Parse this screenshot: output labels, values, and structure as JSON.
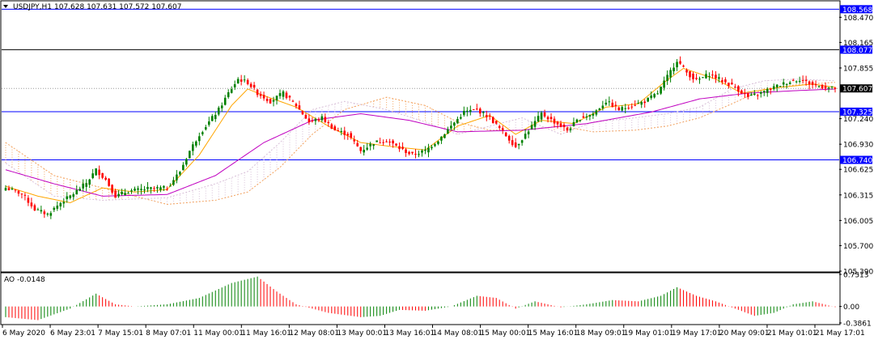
{
  "header": {
    "symbol": "USDJPY,H1",
    "ohlc": "107.628 107.631 107.572 107.607",
    "menu_icon": "triangle-down-icon"
  },
  "colors": {
    "background": "#ffffff",
    "bull_body": "#008000",
    "bear_body": "#ff0000",
    "hline": "#0000ff",
    "ma_fast": "#ffa500",
    "ma_slow": "#c000c0",
    "cloud_a": "#f4a460",
    "cloud_b": "#d8bfd8",
    "ao_up": "#008000",
    "ao_down": "#ff0000",
    "label_bg": "#0000ff",
    "price_bg": "#000000"
  },
  "chart_data": [
    {
      "type": "candlestick",
      "title": "USDJPY,H1",
      "ylim": [
        105.39,
        108.66
      ],
      "price_ticks": [
        "108.470",
        "108.165",
        "107.855",
        "107.240",
        "106.930",
        "106.625",
        "106.315",
        "106.005",
        "105.700",
        "105.390"
      ],
      "horizontal_levels": [
        "108.568",
        "108.077",
        "107.325",
        "106.740"
      ],
      "current_price": "107.607",
      "time_labels": [
        "6 May 2020",
        "6 May 23:01",
        "7 May 15:01",
        "8 May 07:01",
        "11 May 00:01",
        "11 May 16:01",
        "12 May 08:01",
        "13 May 00:01",
        "13 May 16:01",
        "14 May 08:01",
        "15 May 00:01",
        "15 May 16:01",
        "18 May 09:01",
        "19 May 01:01",
        "19 May 17:01",
        "20 May 09:01",
        "21 May 01:01",
        "21 May 17:01"
      ],
      "close_anchors": [
        [
          0,
          106.4
        ],
        [
          5,
          106.33
        ],
        [
          9,
          106.14
        ],
        [
          13,
          106.08
        ],
        [
          17,
          106.22
        ],
        [
          21,
          106.33
        ],
        [
          25,
          106.46
        ],
        [
          28,
          106.62
        ],
        [
          31,
          106.5
        ],
        [
          34,
          106.3
        ],
        [
          38,
          106.36
        ],
        [
          44,
          106.39
        ],
        [
          50,
          106.4
        ],
        [
          54,
          106.6
        ],
        [
          57,
          106.85
        ],
        [
          60,
          107.05
        ],
        [
          63,
          107.2
        ],
        [
          66,
          107.35
        ],
        [
          69,
          107.55
        ],
        [
          72,
          107.72
        ],
        [
          75,
          107.68
        ],
        [
          78,
          107.55
        ],
        [
          82,
          107.45
        ],
        [
          86,
          107.55
        ],
        [
          90,
          107.4
        ],
        [
          94,
          107.2
        ],
        [
          98,
          107.25
        ],
        [
          102,
          107.1
        ],
        [
          106,
          107.05
        ],
        [
          110,
          106.85
        ],
        [
          114,
          106.95
        ],
        [
          118,
          106.98
        ],
        [
          122,
          106.88
        ],
        [
          126,
          106.8
        ],
        [
          130,
          106.85
        ],
        [
          134,
          106.98
        ],
        [
          138,
          107.15
        ],
        [
          142,
          107.32
        ],
        [
          146,
          107.35
        ],
        [
          150,
          107.25
        ],
        [
          154,
          107.08
        ],
        [
          158,
          106.9
        ],
        [
          162,
          107.1
        ],
        [
          166,
          107.3
        ],
        [
          170,
          107.2
        ],
        [
          174,
          107.1
        ],
        [
          178,
          107.25
        ],
        [
          182,
          107.3
        ],
        [
          186,
          107.45
        ],
        [
          190,
          107.35
        ],
        [
          194,
          107.4
        ],
        [
          198,
          107.45
        ],
        [
          202,
          107.55
        ],
        [
          205,
          107.75
        ],
        [
          208,
          107.95
        ],
        [
          211,
          107.8
        ],
        [
          214,
          107.7
        ],
        [
          218,
          107.78
        ],
        [
          222,
          107.7
        ],
        [
          226,
          107.62
        ],
        [
          230,
          107.5
        ],
        [
          234,
          107.55
        ],
        [
          238,
          107.62
        ],
        [
          242,
          107.68
        ],
        [
          246,
          107.72
        ],
        [
          250,
          107.65
        ],
        [
          254,
          107.62
        ],
        [
          257,
          107.607
        ]
      ],
      "ma_fast_anchors": [
        [
          0,
          106.42
        ],
        [
          10,
          106.3
        ],
        [
          20,
          106.22
        ],
        [
          30,
          106.4
        ],
        [
          40,
          106.35
        ],
        [
          50,
          106.38
        ],
        [
          60,
          106.8
        ],
        [
          70,
          107.4
        ],
        [
          75,
          107.6
        ],
        [
          80,
          107.52
        ],
        [
          90,
          107.38
        ],
        [
          100,
          107.15
        ],
        [
          110,
          106.95
        ],
        [
          120,
          106.9
        ],
        [
          130,
          106.86
        ],
        [
          140,
          107.15
        ],
        [
          150,
          107.28
        ],
        [
          158,
          107.05
        ],
        [
          166,
          107.22
        ],
        [
          176,
          107.18
        ],
        [
          186,
          107.38
        ],
        [
          196,
          107.42
        ],
        [
          204,
          107.68
        ],
        [
          210,
          107.85
        ],
        [
          220,
          107.72
        ],
        [
          228,
          107.55
        ],
        [
          240,
          107.62
        ],
        [
          250,
          107.66
        ],
        [
          257,
          107.62
        ]
      ],
      "ma_slow_anchors": [
        [
          0,
          106.62
        ],
        [
          15,
          106.45
        ],
        [
          30,
          106.3
        ],
        [
          50,
          106.32
        ],
        [
          65,
          106.55
        ],
        [
          80,
          106.95
        ],
        [
          95,
          107.22
        ],
        [
          110,
          107.3
        ],
        [
          125,
          107.22
        ],
        [
          140,
          107.08
        ],
        [
          160,
          107.1
        ],
        [
          180,
          107.18
        ],
        [
          200,
          107.32
        ],
        [
          215,
          107.48
        ],
        [
          230,
          107.55
        ],
        [
          245,
          107.58
        ],
        [
          257,
          107.6
        ]
      ],
      "cloud_anchors": [
        [
          0,
          106.95,
          106.7
        ],
        [
          15,
          106.55,
          106.3
        ],
        [
          30,
          106.4,
          106.25
        ],
        [
          50,
          106.2,
          106.28
        ],
        [
          65,
          106.25,
          106.45
        ],
        [
          75,
          106.35,
          106.6
        ],
        [
          85,
          106.65,
          106.95
        ],
        [
          95,
          107.05,
          107.35
        ],
        [
          105,
          107.35,
          107.45
        ],
        [
          118,
          107.5,
          107.35
        ],
        [
          130,
          107.4,
          107.2
        ],
        [
          140,
          107.2,
          107.05
        ],
        [
          150,
          107.1,
          107.15
        ],
        [
          160,
          107.1,
          107.25
        ],
        [
          172,
          107.15,
          107.05
        ],
        [
          182,
          107.08,
          107.2
        ],
        [
          195,
          107.1,
          107.25
        ],
        [
          205,
          107.15,
          107.3
        ],
        [
          215,
          107.25,
          107.38
        ],
        [
          225,
          107.42,
          107.6
        ],
        [
          235,
          107.6,
          107.7
        ],
        [
          245,
          107.65,
          107.72
        ],
        [
          257,
          107.68,
          107.7
        ]
      ]
    },
    {
      "type": "bar",
      "title": "AO -0.0148",
      "ylim": [
        -0.3861,
        0.7513
      ],
      "y_ticks": [
        "0.7513",
        "0.00",
        "-0.3861"
      ],
      "ao_anchors": [
        [
          0,
          -0.25
        ],
        [
          10,
          -0.32
        ],
        [
          20,
          -0.05
        ],
        [
          28,
          0.3
        ],
        [
          34,
          0.05
        ],
        [
          40,
          0.0
        ],
        [
          50,
          0.05
        ],
        [
          60,
          0.2
        ],
        [
          70,
          0.55
        ],
        [
          78,
          0.7
        ],
        [
          84,
          0.35
        ],
        [
          90,
          0.05
        ],
        [
          100,
          -0.15
        ],
        [
          110,
          -0.25
        ],
        [
          116,
          -0.22
        ],
        [
          122,
          -0.08
        ],
        [
          130,
          -0.1
        ],
        [
          138,
          0.0
        ],
        [
          146,
          0.25
        ],
        [
          152,
          0.2
        ],
        [
          158,
          -0.05
        ],
        [
          164,
          0.12
        ],
        [
          172,
          -0.02
        ],
        [
          180,
          0.05
        ],
        [
          188,
          0.15
        ],
        [
          196,
          0.12
        ],
        [
          203,
          0.25
        ],
        [
          208,
          0.45
        ],
        [
          214,
          0.25
        ],
        [
          220,
          0.12
        ],
        [
          226,
          -0.05
        ],
        [
          232,
          -0.22
        ],
        [
          238,
          -0.15
        ],
        [
          244,
          0.05
        ],
        [
          250,
          0.12
        ],
        [
          257,
          -0.0148
        ]
      ]
    }
  ]
}
